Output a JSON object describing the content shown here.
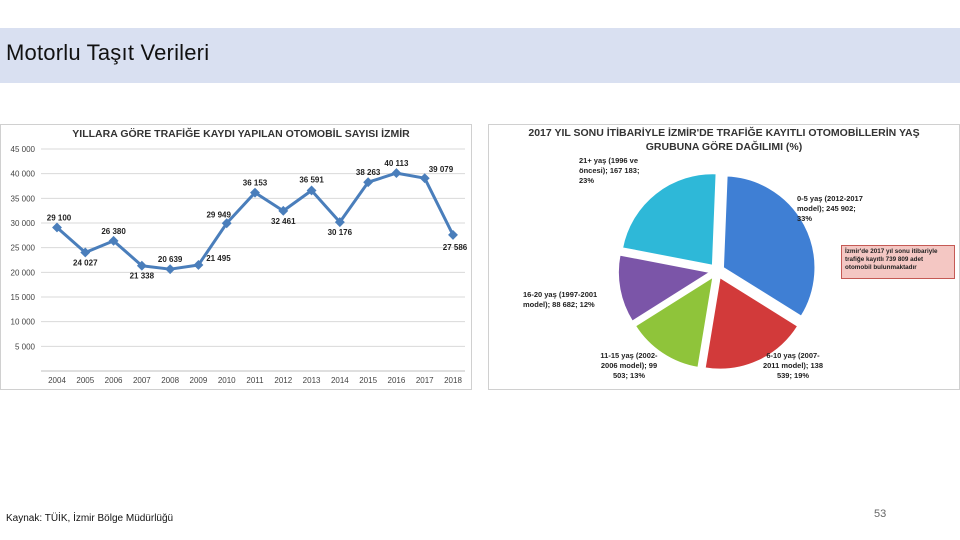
{
  "slide": {
    "title": "Motorlu Taşıt Verileri",
    "source": "Kaynak: TÜİK, İzmir Bölge Müdürlüğü",
    "page_number": "53"
  },
  "chart_data": [
    {
      "type": "line",
      "title": "YILLARA GÖRE TRAFİĞE KAYDI YAPILAN OTOMOBİL SAYISI İZMİR",
      "x": [
        "2004",
        "2005",
        "2006",
        "2007",
        "2008",
        "2009",
        "2010",
        "2011",
        "2012",
        "2013",
        "2014",
        "2015",
        "2016",
        "2017",
        "2018"
      ],
      "values": [
        29100,
        24027,
        26380,
        21338,
        20639,
        21495,
        29949,
        36153,
        32461,
        36591,
        30176,
        38263,
        40113,
        39079,
        27586
      ],
      "value_labels": [
        "29 100",
        "24 027",
        "26 380",
        "21 338",
        "20 639",
        "21 495",
        "29 949",
        "36 153",
        "32 461",
        "36 591",
        "30 176",
        "38 263",
        "40 113",
        "39 079",
        "27 586"
      ],
      "y_ticks": [
        "5 000",
        "10 000",
        "15 000",
        "20 000",
        "25 000",
        "30 000",
        "35 000",
        "40 000",
        "45 000"
      ],
      "ylim": [
        0,
        45000
      ],
      "color": "#4a7ebb"
    },
    {
      "type": "pie",
      "title_line1": "2017 YIL SONU İTİBARİYLE İZMİR'DE TRAFİĞE KAYITLI OTOMOBİLLERİN YAŞ",
      "title_line2": "GRUBUNA GÖRE DAĞILIMI (%)",
      "slices": [
        {
          "name": "0-5 yaş (2012-2017 model)",
          "value": 245902,
          "percent": 33,
          "color": "#3f7fd4",
          "label_lines": [
            "0-5 yaş (2012-2017",
            "model); 245 902;",
            "33%"
          ]
        },
        {
          "name": "6-10 yaş (2007-2011 model)",
          "value": 138539,
          "percent": 19,
          "color": "#d23a3a",
          "label_lines": [
            "6-10 yaş (2007-",
            "2011 model); 138",
            "539; 19%"
          ]
        },
        {
          "name": "11-15 yaş (2002-2006 model)",
          "value": 99503,
          "percent": 13,
          "color": "#8fc43a",
          "label_lines": [
            "11-15 yaş (2002-",
            "2006 model); 99",
            "503; 13%"
          ]
        },
        {
          "name": "16-20 yaş (1997-2001 model)",
          "value": 88682,
          "percent": 12,
          "color": "#7b55a8",
          "label_lines": [
            "16-20 yaş (1997-2001",
            "model); 88 682; 12%"
          ]
        },
        {
          "name": "21+ yaş (1996 ve öncesi)",
          "value": 167183,
          "percent": 23,
          "color": "#2eb8d8",
          "label_lines": [
            "21+ yaş (1996 ve",
            "öncesi); 167 183;",
            "23%"
          ]
        }
      ],
      "note": "İzmir'de 2017 yıl sonu itibariyle trafiğe kayıtlı 739 809 adet otomobil bulunmaktadır"
    }
  ]
}
